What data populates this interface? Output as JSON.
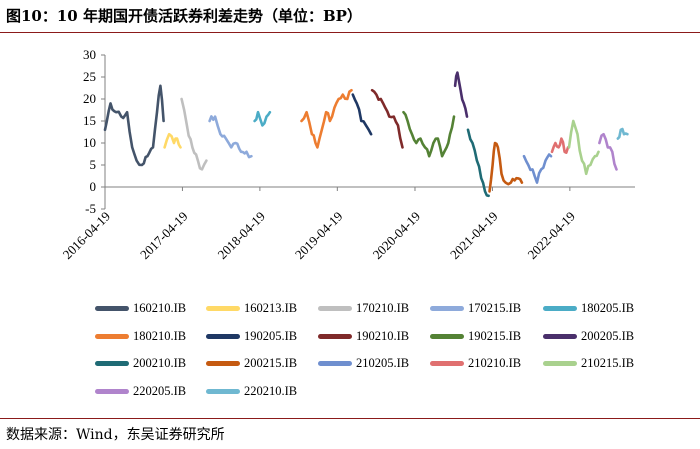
{
  "header": {
    "title": "图10：10 年期国开债活跃券利差走势（单位：BP）"
  },
  "footer": {
    "source": "数据来源：Wind，东吴证券研究所"
  },
  "chart_data": {
    "type": "line",
    "title": "10 年期国开债活跃券利差走势（单位：BP）",
    "xlabel": "",
    "ylabel": "",
    "ylim": [
      -5,
      30
    ],
    "yticks": [
      -5,
      0,
      5,
      10,
      15,
      20,
      25,
      30
    ],
    "xticks": [
      "2016-04-19",
      "2017-04-19",
      "2018-04-19",
      "2019-04-19",
      "2020-04-19",
      "2021-04-19",
      "2022-04-19"
    ],
    "grid": false,
    "legend_position": "bottom",
    "series": [
      {
        "name": "160210.IB",
        "color": "#44546a",
        "x": [
          "2016-04-19",
          "2016-05-15",
          "2016-06-10",
          "2016-07-05",
          "2016-08-01",
          "2016-08-25",
          "2016-09-15",
          "2016-10-10",
          "2016-11-05",
          "2016-12-01",
          "2016-12-20",
          "2017-01-05",
          "2017-01-20"
        ],
        "values": [
          13,
          19,
          17,
          16,
          17,
          9,
          6,
          5,
          7,
          9,
          17,
          23,
          15
        ]
      },
      {
        "name": "160213.IB",
        "color": "#ffd966",
        "x": [
          "2017-01-25",
          "2017-02-15",
          "2017-03-10",
          "2017-03-25",
          "2017-04-10"
        ],
        "values": [
          9,
          12,
          10,
          11,
          9
        ]
      },
      {
        "name": "170210.IB",
        "color": "#bfbfbf",
        "x": [
          "2017-04-15",
          "2017-05-10",
          "2017-06-05",
          "2017-07-01",
          "2017-07-20",
          "2017-08-10"
        ],
        "values": [
          20,
          14,
          9,
          6,
          4,
          6
        ]
      },
      {
        "name": "170215.IB",
        "color": "#8eaadb",
        "x": [
          "2017-08-25",
          "2017-09-20",
          "2017-10-15",
          "2017-11-10",
          "2017-12-05",
          "2017-12-25",
          "2018-01-20",
          "2018-02-15",
          "2018-03-10"
        ],
        "values": [
          15,
          16,
          12,
          11,
          9,
          10,
          8,
          8,
          7
        ]
      },
      {
        "name": "180205.IB",
        "color": "#4bacc6",
        "x": [
          "2018-03-25",
          "2018-04-10",
          "2018-05-01",
          "2018-05-20",
          "2018-06-05"
        ],
        "values": [
          15,
          17,
          14,
          16,
          17
        ]
      },
      {
        "name": "180210.IB",
        "color": "#ed7d31",
        "x": [
          "2018-11-01",
          "2018-11-25",
          "2018-12-20",
          "2019-01-15",
          "2019-02-05",
          "2019-02-25",
          "2019-03-15",
          "2019-04-05",
          "2019-04-25",
          "2019-05-15",
          "2019-06-05",
          "2019-06-25"
        ],
        "values": [
          15,
          17,
          12,
          9,
          13,
          17,
          15,
          18,
          20,
          21,
          20,
          22
        ]
      },
      {
        "name": "190205.IB",
        "color": "#1f3864",
        "x": [
          "2019-07-01",
          "2019-07-20",
          "2019-08-10",
          "2019-09-01",
          "2019-09-25"
        ],
        "values": [
          21,
          19,
          15,
          14,
          12
        ]
      },
      {
        "name": "190210.IB",
        "color": "#7f2a2a",
        "x": [
          "2019-09-30",
          "2019-10-20",
          "2019-11-10",
          "2019-12-01",
          "2019-12-20",
          "2020-01-10",
          "2020-01-30",
          "2020-02-20"
        ],
        "values": [
          22,
          21,
          20,
          18,
          16,
          16,
          14,
          9
        ]
      },
      {
        "name": "190215.IB",
        "color": "#548235",
        "x": [
          "2020-02-25",
          "2020-03-15",
          "2020-04-05",
          "2020-04-25",
          "2020-05-15",
          "2020-06-05",
          "2020-06-25",
          "2020-07-15",
          "2020-08-05",
          "2020-08-25",
          "2020-09-15",
          "2020-10-01",
          "2020-10-20"
        ],
        "values": [
          17,
          15,
          12,
          10,
          11,
          9,
          7,
          10,
          11,
          7,
          9,
          12,
          16
        ]
      },
      {
        "name": "200205.IB",
        "color": "#4a2f6b",
        "x": [
          "2020-10-25",
          "2020-11-05",
          "2020-11-20",
          "2020-12-05",
          "2020-12-20"
        ],
        "values": [
          23,
          26,
          22,
          19,
          16
        ]
      },
      {
        "name": "200210.IB",
        "color": "#1f6b75",
        "x": [
          "2020-12-25",
          "2021-01-15",
          "2021-02-05",
          "2021-02-25",
          "2021-03-15",
          "2021-04-01"
        ],
        "values": [
          13,
          10,
          6,
          2,
          -1,
          -2
        ]
      },
      {
        "name": "200215.IB",
        "color": "#c55a11",
        "x": [
          "2021-04-05",
          "2021-04-20",
          "2021-05-01",
          "2021-05-15",
          "2021-06-01",
          "2021-06-20",
          "2021-07-15",
          "2021-08-10",
          "2021-09-05"
        ],
        "values": [
          -1,
          5,
          10,
          9,
          3,
          1,
          1,
          2,
          1
        ]
      },
      {
        "name": "210205.IB",
        "color": "#6f8fcf",
        "x": [
          "2021-09-15",
          "2021-10-05",
          "2021-10-25",
          "2021-11-15",
          "2021-12-05",
          "2021-12-25",
          "2022-01-20"
        ],
        "values": [
          7,
          5,
          4,
          1,
          4,
          6,
          7
        ]
      },
      {
        "name": "210210.IB",
        "color": "#e07070",
        "x": [
          "2022-01-25",
          "2022-02-10",
          "2022-02-25",
          "2022-03-10",
          "2022-03-25",
          "2022-04-10"
        ],
        "values": [
          8,
          10,
          9,
          11,
          8,
          9
        ]
      },
      {
        "name": "210215.IB",
        "color": "#a9d18e",
        "x": [
          "2022-04-15",
          "2022-05-05",
          "2022-05-25",
          "2022-06-15",
          "2022-07-05",
          "2022-07-25",
          "2022-08-15",
          "2022-09-01"
        ],
        "values": [
          9,
          15,
          12,
          6,
          3,
          5,
          7,
          8
        ]
      },
      {
        "name": "220205.IB",
        "color": "#b084cc",
        "x": [
          "2022-09-05",
          "2022-09-25",
          "2022-10-15",
          "2022-11-05",
          "2022-11-25"
        ],
        "values": [
          10,
          12,
          9,
          8,
          4
        ]
      },
      {
        "name": "220210.IB",
        "color": "#6fb8d1",
        "x": [
          "2022-12-01",
          "2022-12-15",
          "2022-12-30",
          "2023-01-15"
        ],
        "values": [
          11,
          13,
          12,
          12
        ]
      }
    ]
  }
}
